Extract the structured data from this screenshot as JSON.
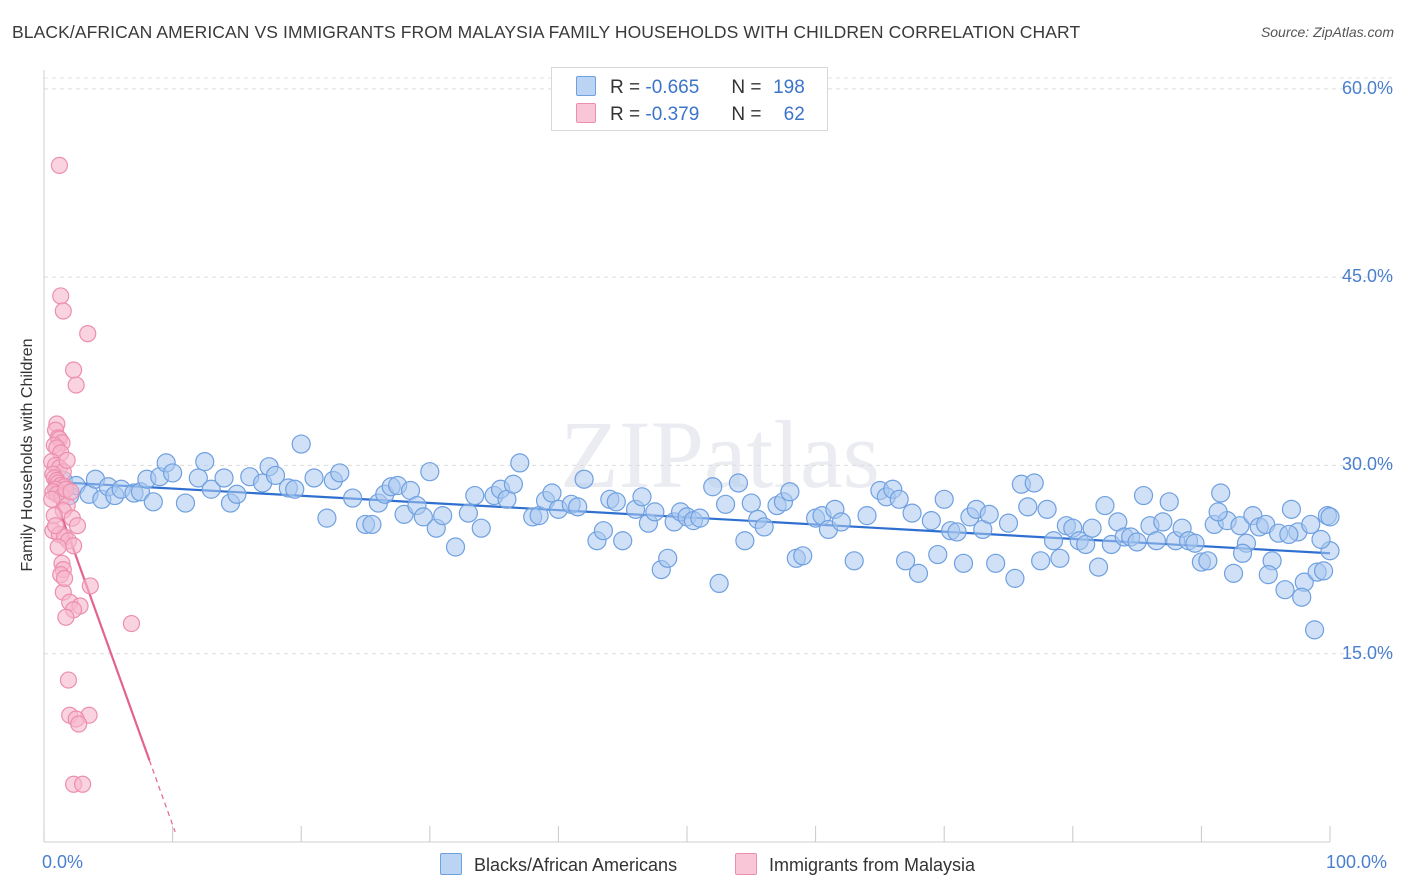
{
  "header": {
    "title": "BLACK/AFRICAN AMERICAN VS IMMIGRANTS FROM MALAYSIA FAMILY HOUSEHOLDS WITH CHILDREN CORRELATION CHART",
    "source": "Source: ZipAtlas.com"
  },
  "watermark": "ZIPatlas",
  "legend_top": {
    "rows": [
      {
        "r_label": "R =",
        "r_value": "-0.665",
        "n_label": "N =",
        "n_value": "198"
      },
      {
        "r_label": "R =",
        "r_value": "-0.379",
        "n_label": "N =",
        "n_value": "62"
      }
    ]
  },
  "legend_bottom": {
    "items": [
      "Blacks/African Americans",
      "Immigrants from Malaysia"
    ]
  },
  "colors": {
    "blue_fill": "#a9c8f0",
    "blue_stroke": "#6fa0e0",
    "blue_line": "#2f6fcf",
    "pink_fill": "#f6b6cb",
    "pink_stroke": "#ec8fad",
    "pink_line": "#e4628f",
    "axis_text": "#4a7fcf"
  },
  "chart_data": {
    "type": "scatter",
    "title": "BLACK/AFRICAN AMERICAN VS IMMIGRANTS FROM MALAYSIA FAMILY HOUSEHOLDS WITH CHILDREN CORRELATION CHART",
    "xlabel": "",
    "ylabel": "Family Households with Children",
    "xlim": [
      0,
      100
    ],
    "ylim": [
      0,
      61.5
    ],
    "x_tick_labels": [
      "0.0%",
      "100.0%"
    ],
    "y_ticks": [
      15,
      30,
      45,
      60
    ],
    "y_tick_labels": [
      "15.0%",
      "30.0%",
      "45.0%",
      "60.0%"
    ],
    "grid": true,
    "series": [
      {
        "name": "Blacks/African Americans",
        "R": -0.665,
        "N": 198,
        "trend": {
          "x": [
            0.5,
            100
          ],
          "y": [
            28.7,
            23.0
          ],
          "style": "solid"
        },
        "points": [
          [
            1,
            28.2
          ],
          [
            1.5,
            28.8
          ],
          [
            2,
            27.6
          ],
          [
            2.5,
            28.4
          ],
          [
            3.5,
            27.7
          ],
          [
            4,
            28.9
          ],
          [
            4.5,
            27.3
          ],
          [
            5,
            28.3
          ],
          [
            5.5,
            27.6
          ],
          [
            6,
            28.1
          ],
          [
            7,
            27.8
          ],
          [
            7.5,
            27.9
          ],
          [
            8,
            28.9
          ],
          [
            8.5,
            27.1
          ],
          [
            9,
            29.1
          ],
          [
            9.5,
            30.2
          ],
          [
            10,
            29.4
          ],
          [
            11,
            27.0
          ],
          [
            12,
            29.0
          ],
          [
            12.5,
            30.3
          ],
          [
            13,
            28.1
          ],
          [
            14,
            29.0
          ],
          [
            14.5,
            27.0
          ],
          [
            15,
            27.7
          ],
          [
            16,
            29.1
          ],
          [
            17,
            28.6
          ],
          [
            17.5,
            29.9
          ],
          [
            18,
            29.2
          ],
          [
            19,
            28.2
          ],
          [
            19.5,
            28.1
          ],
          [
            20,
            31.7
          ],
          [
            21,
            29.0
          ],
          [
            22,
            25.8
          ],
          [
            22.5,
            28.8
          ],
          [
            23,
            29.4
          ],
          [
            24,
            27.4
          ],
          [
            25,
            25.3
          ],
          [
            25.5,
            25.3
          ],
          [
            26,
            27.0
          ],
          [
            26.5,
            27.7
          ],
          [
            27,
            28.3
          ],
          [
            27.5,
            28.4
          ],
          [
            28,
            26.1
          ],
          [
            28.5,
            28.0
          ],
          [
            29,
            26.8
          ],
          [
            29.5,
            25.9
          ],
          [
            30,
            29.5
          ],
          [
            30.5,
            25.0
          ],
          [
            31,
            26.0
          ],
          [
            32,
            23.5
          ],
          [
            33,
            26.2
          ],
          [
            33.5,
            27.6
          ],
          [
            34,
            25.0
          ],
          [
            35,
            27.6
          ],
          [
            35.5,
            28.1
          ],
          [
            36,
            27.3
          ],
          [
            36.5,
            28.5
          ],
          [
            37,
            30.2
          ],
          [
            38,
            25.9
          ],
          [
            38.5,
            26.0
          ],
          [
            39,
            27.2
          ],
          [
            39.5,
            27.8
          ],
          [
            40,
            26.5
          ],
          [
            41,
            26.9
          ],
          [
            41.5,
            26.7
          ],
          [
            42,
            28.9
          ],
          [
            43,
            24.0
          ],
          [
            43.5,
            24.8
          ],
          [
            44,
            27.3
          ],
          [
            44.5,
            27.1
          ],
          [
            45,
            24.0
          ],
          [
            46,
            26.5
          ],
          [
            46.5,
            27.5
          ],
          [
            47,
            25.4
          ],
          [
            47.5,
            26.3
          ],
          [
            48,
            21.7
          ],
          [
            48.5,
            22.6
          ],
          [
            49,
            25.5
          ],
          [
            49.5,
            26.3
          ],
          [
            50,
            25.9
          ],
          [
            50.5,
            25.6
          ],
          [
            51,
            25.8
          ],
          [
            52,
            28.3
          ],
          [
            52.5,
            20.6
          ],
          [
            53,
            26.9
          ],
          [
            54,
            28.6
          ],
          [
            54.5,
            24.0
          ],
          [
            55,
            27.0
          ],
          [
            55.5,
            25.7
          ],
          [
            56,
            25.1
          ],
          [
            57,
            26.8
          ],
          [
            57.5,
            27.1
          ],
          [
            58,
            27.9
          ],
          [
            58.5,
            22.6
          ],
          [
            59,
            22.8
          ],
          [
            60,
            25.8
          ],
          [
            60.5,
            26.0
          ],
          [
            61,
            24.9
          ],
          [
            61.5,
            26.5
          ],
          [
            62,
            25.5
          ],
          [
            63,
            22.4
          ],
          [
            64,
            26.0
          ],
          [
            65,
            28.0
          ],
          [
            65.5,
            27.5
          ],
          [
            66,
            28.1
          ],
          [
            66.5,
            27.3
          ],
          [
            67,
            22.4
          ],
          [
            67.5,
            26.2
          ],
          [
            68,
            21.4
          ],
          [
            69,
            25.6
          ],
          [
            69.5,
            22.9
          ],
          [
            70,
            27.3
          ],
          [
            70.5,
            24.8
          ],
          [
            71,
            24.7
          ],
          [
            71.5,
            22.2
          ],
          [
            72,
            25.9
          ],
          [
            72.5,
            26.5
          ],
          [
            73,
            24.9
          ],
          [
            73.5,
            26.1
          ],
          [
            74,
            22.2
          ],
          [
            75,
            25.4
          ],
          [
            75.5,
            21.0
          ],
          [
            76,
            28.5
          ],
          [
            76.5,
            26.7
          ],
          [
            77,
            28.6
          ],
          [
            77.5,
            22.4
          ],
          [
            78,
            26.5
          ],
          [
            78.5,
            24.0
          ],
          [
            79,
            22.6
          ],
          [
            79.5,
            25.2
          ],
          [
            80,
            25.0
          ],
          [
            80.5,
            24.0
          ],
          [
            81,
            23.7
          ],
          [
            81.5,
            25.0
          ],
          [
            82,
            21.9
          ],
          [
            82.5,
            26.8
          ],
          [
            83,
            23.7
          ],
          [
            83.5,
            25.5
          ],
          [
            84,
            24.3
          ],
          [
            84.5,
            24.3
          ],
          [
            85,
            23.9
          ],
          [
            85.5,
            27.6
          ],
          [
            86,
            25.2
          ],
          [
            86.5,
            24.0
          ],
          [
            87,
            25.5
          ],
          [
            87.5,
            27.1
          ],
          [
            88,
            24.0
          ],
          [
            88.5,
            25.0
          ],
          [
            89,
            24.0
          ],
          [
            89.5,
            23.8
          ],
          [
            90,
            22.3
          ],
          [
            90.5,
            22.4
          ],
          [
            91,
            25.3
          ],
          [
            91.5,
            27.8
          ],
          [
            92,
            25.6
          ],
          [
            92.5,
            21.4
          ],
          [
            93,
            25.2
          ],
          [
            93.5,
            23.8
          ],
          [
            94,
            26.0
          ],
          [
            94.5,
            25.1
          ],
          [
            95,
            25.3
          ],
          [
            95.5,
            22.4
          ],
          [
            96,
            24.6
          ],
          [
            96.5,
            20.1
          ],
          [
            97,
            26.5
          ],
          [
            97.5,
            24.7
          ],
          [
            98,
            20.7
          ],
          [
            98.5,
            25.3
          ],
          [
            99,
            21.5
          ],
          [
            99.5,
            21.6
          ],
          [
            100,
            23.2
          ],
          [
            96.8,
            24.5
          ],
          [
            97.8,
            19.5
          ],
          [
            98.8,
            16.9
          ],
          [
            99.3,
            24.1
          ],
          [
            99.8,
            26.0
          ],
          [
            100,
            25.9
          ],
          [
            95.2,
            21.3
          ],
          [
            93.2,
            23.0
          ],
          [
            91.3,
            26.3
          ]
        ]
      },
      {
        "name": "Immigrants from Malaysia",
        "R": -0.379,
        "N": 62,
        "trend": {
          "x": [
            0.3,
            8.2
          ],
          "y": [
            29.0,
            6.5
          ],
          "style": "solid",
          "dashed_extension": {
            "x": [
              8.2,
              10.2
            ],
            "y": [
              6.5,
              0.8
            ]
          }
        },
        "points": [
          [
            1.2,
            53.9
          ],
          [
            1.3,
            43.5
          ],
          [
            1.5,
            42.3
          ],
          [
            3.4,
            40.5
          ],
          [
            2.3,
            37.6
          ],
          [
            2.5,
            36.4
          ],
          [
            1.0,
            33.3
          ],
          [
            0.9,
            32.8
          ],
          [
            1.1,
            32.2
          ],
          [
            1.2,
            32.1
          ],
          [
            1.4,
            31.8
          ],
          [
            0.8,
            31.6
          ],
          [
            1.0,
            31.4
          ],
          [
            1.3,
            31.0
          ],
          [
            0.6,
            30.3
          ],
          [
            0.9,
            30.0
          ],
          [
            1.2,
            29.8
          ],
          [
            1.5,
            29.5
          ],
          [
            0.7,
            29.3
          ],
          [
            0.8,
            29.0
          ],
          [
            1.0,
            28.8
          ],
          [
            1.1,
            28.6
          ],
          [
            1.3,
            28.4
          ],
          [
            1.6,
            28.3
          ],
          [
            0.9,
            28.1
          ],
          [
            0.7,
            27.9
          ],
          [
            1.0,
            27.7
          ],
          [
            1.4,
            27.5
          ],
          [
            0.6,
            27.3
          ],
          [
            1.8,
            26.8
          ],
          [
            1.5,
            26.4
          ],
          [
            0.8,
            26.0
          ],
          [
            2.2,
            25.8
          ],
          [
            2.6,
            25.2
          ],
          [
            0.7,
            24.8
          ],
          [
            1.2,
            24.5
          ],
          [
            1.6,
            24.3
          ],
          [
            1.9,
            24.0
          ],
          [
            2.3,
            23.6
          ],
          [
            1.1,
            23.5
          ],
          [
            1.4,
            22.2
          ],
          [
            1.5,
            21.7
          ],
          [
            1.3,
            21.3
          ],
          [
            3.6,
            20.4
          ],
          [
            1.5,
            19.9
          ],
          [
            2.0,
            19.1
          ],
          [
            2.8,
            18.8
          ],
          [
            2.3,
            18.5
          ],
          [
            1.7,
            17.9
          ],
          [
            6.8,
            17.4
          ],
          [
            1.9,
            12.9
          ],
          [
            2.0,
            10.1
          ],
          [
            3.5,
            10.1
          ],
          [
            2.5,
            9.8
          ],
          [
            2.7,
            9.4
          ],
          [
            2.3,
            4.6
          ],
          [
            3.0,
            4.6
          ],
          [
            1.6,
            21.0
          ],
          [
            0.9,
            25.2
          ],
          [
            1.7,
            28.1
          ],
          [
            2.1,
            27.9
          ],
          [
            1.8,
            30.4
          ]
        ]
      }
    ]
  }
}
